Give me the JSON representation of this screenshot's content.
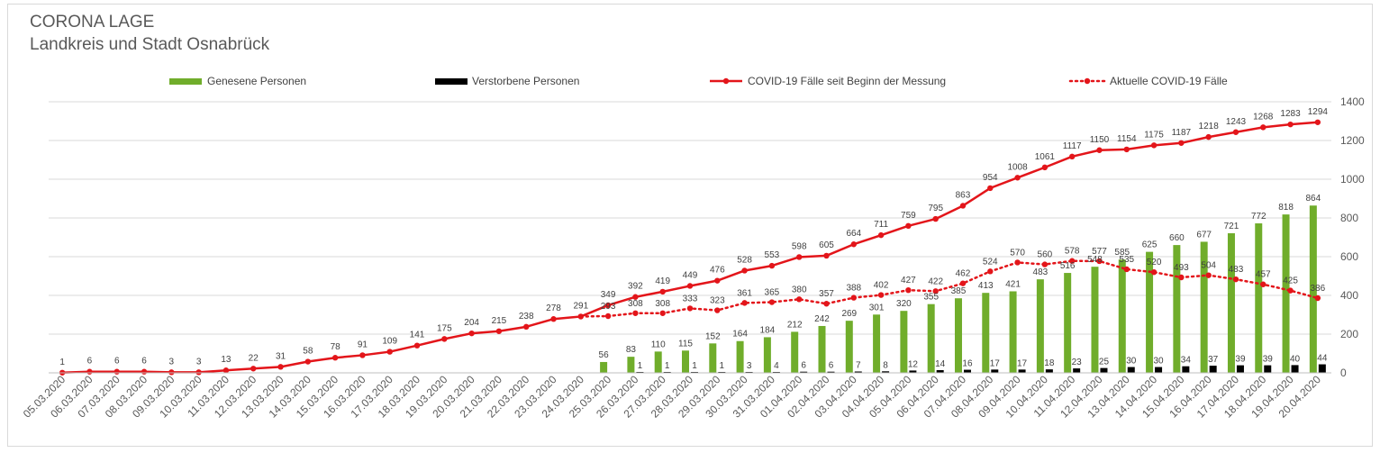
{
  "title": "CORONA LAGE",
  "subtitle": "Landkreis und Stadt Osnabrück",
  "colors": {
    "recovered": "#70ad2b",
    "deceased": "#000000",
    "total": "#e3151a",
    "active": "#e3151a",
    "grid": "#d9d9d9",
    "text": "#595959"
  },
  "chart_data": {
    "type": "bar",
    "legend": [
      "Genesene Personen",
      "Verstorbene Personen",
      "COVID-19 Fälle seit Beginn der Messung",
      "Aktuelle COVID-19 Fälle"
    ],
    "legend_position": "top",
    "grid": true,
    "ylim": [
      0,
      1400
    ],
    "yticks": [
      "0",
      "200",
      "400",
      "600",
      "800",
      "1000",
      "1200",
      "1400"
    ],
    "categories": [
      "05.03.2020",
      "06.03.2020",
      "07.03.2020",
      "08.03.2020",
      "09.03.2020",
      "10.03.2020",
      "11.03.2020",
      "12.03.2020",
      "13.03.2020",
      "14.03.2020",
      "15.03.2020",
      "16.03.2020",
      "17.03.2020",
      "18.03.2020",
      "19.03.2020",
      "20.03.2020",
      "21.03.2020",
      "22.03.2020",
      "23.03.2020",
      "24.03.2020",
      "25.03.2020",
      "26.03.2020",
      "27.03.2020",
      "28.03.2020",
      "29.03.2020",
      "30.03.2020",
      "31.03.2020",
      "01.04.2020",
      "02.04.2020",
      "03.04.2020",
      "04.04.2020",
      "05.04.2020",
      "06.04.2020",
      "07.04.2020",
      "08.04.2020",
      "09.04.2020",
      "10.04.2020",
      "11.04.2020",
      "12.04.2020",
      "13.04.2020",
      "14.04.2020",
      "15.04.2020",
      "16.04.2020",
      "17.04.2020",
      "18.04.2020",
      "19.04.2020",
      "20.04.2020"
    ],
    "series": [
      {
        "name": "Genesene Personen",
        "type": "bar",
        "values": [
          null,
          null,
          null,
          null,
          null,
          null,
          null,
          null,
          null,
          null,
          null,
          null,
          null,
          null,
          null,
          null,
          null,
          null,
          null,
          null,
          56,
          83,
          110,
          115,
          152,
          164,
          184,
          212,
          242,
          269,
          301,
          320,
          355,
          385,
          413,
          421,
          483,
          516,
          548,
          585,
          625,
          660,
          677,
          721,
          772,
          818,
          864
        ],
        "labels": [
          "",
          "",
          "",
          "",
          "",
          "",
          "",
          "",
          "",
          "",
          "",
          "",
          "",
          "",
          "",
          "",
          "",
          "",
          "",
          "",
          "56",
          "83",
          "110",
          "115",
          "152",
          "164",
          "184",
          "212",
          "242",
          "269",
          "301",
          "320",
          "355",
          "385",
          "413",
          "421",
          "483",
          "516",
          "548",
          "585",
          "625",
          "660",
          "677",
          "721",
          "772",
          "818",
          "864"
        ]
      },
      {
        "name": "Verstorbene Personen",
        "type": "bar",
        "values": [
          null,
          null,
          null,
          null,
          null,
          null,
          null,
          null,
          null,
          null,
          null,
          null,
          null,
          null,
          null,
          null,
          null,
          null,
          null,
          null,
          null,
          1,
          1,
          1,
          1,
          3,
          4,
          6,
          6,
          7,
          8,
          12,
          14,
          16,
          17,
          17,
          18,
          23,
          25,
          30,
          30,
          34,
          37,
          39,
          39,
          40,
          44
        ],
        "labels": [
          "",
          "",
          "",
          "",
          "",
          "",
          "",
          "",
          "",
          "",
          "",
          "",
          "",
          "",
          "",
          "",
          "",
          "",
          "",
          "",
          "",
          "1",
          "1",
          "1",
          "1",
          "3",
          "4",
          "6",
          "6",
          "7",
          "8",
          "12",
          "14",
          "16",
          "17",
          "17",
          "18",
          "23",
          "25",
          "30",
          "30",
          "34",
          "37",
          "39",
          "39",
          "40",
          "44"
        ]
      },
      {
        "name": "COVID-19 Fälle seit Beginn der Messung",
        "type": "line",
        "values": [
          1,
          6,
          6,
          6,
          3,
          3,
          13,
          22,
          31,
          58,
          78,
          91,
          109,
          141,
          175,
          204,
          215,
          238,
          278,
          291,
          349,
          392,
          419,
          449,
          476,
          528,
          553,
          598,
          605,
          664,
          711,
          759,
          795,
          863,
          954,
          1008,
          1061,
          1117,
          1150,
          1154,
          1175,
          1187,
          1218,
          1243,
          1268,
          1283,
          1294
        ],
        "labels": [
          "1",
          "6",
          "6",
          "6",
          "3",
          "3",
          "13",
          "22",
          "31",
          "58",
          "78",
          "91",
          "109",
          "141",
          "175",
          "204",
          "215",
          "238",
          "278",
          "291",
          "349",
          "392",
          "419",
          "449",
          "476",
          "528",
          "553",
          "598",
          "605",
          "664",
          "711",
          "759",
          "795",
          "863",
          "954",
          "1008",
          "1061",
          "1117",
          "1150",
          "1154",
          "1175",
          "1187",
          "1218",
          "1243",
          "1268",
          "1283",
          "1294"
        ]
      },
      {
        "name": "Aktuelle COVID-19 Fälle",
        "type": "line-dotted",
        "values": [
          1,
          6,
          6,
          6,
          3,
          3,
          13,
          22,
          31,
          58,
          78,
          91,
          109,
          141,
          175,
          204,
          215,
          238,
          278,
          291,
          293,
          308,
          308,
          333,
          323,
          361,
          365,
          380,
          357,
          388,
          402,
          427,
          422,
          462,
          524,
          570,
          560,
          578,
          577,
          535,
          520,
          493,
          504,
          483,
          457,
          425,
          386
        ],
        "labels": [
          "1",
          "6",
          "6",
          "6",
          "3",
          "3",
          "13",
          "22",
          "31",
          "58",
          "78",
          "91",
          "109",
          "141",
          "175",
          "204",
          "215",
          "238",
          "278",
          "291",
          "293",
          "308",
          "308",
          "333",
          "323",
          "361",
          "365",
          "380",
          "357",
          "388",
          "402",
          "427",
          "422",
          "462",
          "524",
          "570",
          "560",
          "578",
          "577",
          "535",
          "520",
          "493",
          "504",
          "483",
          "457",
          "425",
          "386"
        ]
      }
    ]
  }
}
